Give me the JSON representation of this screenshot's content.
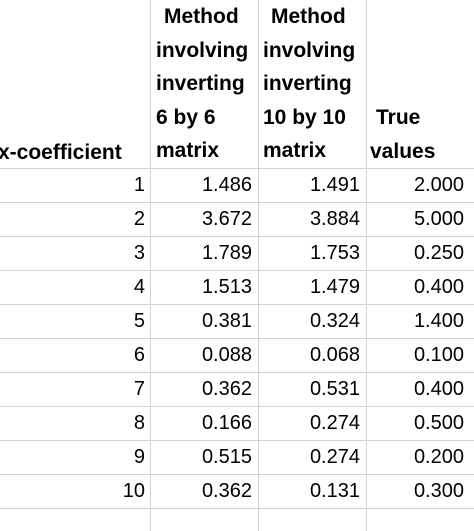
{
  "headers": {
    "x_coefficient": "x-coefficient",
    "method6": [
      "Method",
      "involving",
      "inverting",
      "6 by 6",
      "matrix"
    ],
    "method10": [
      "Method",
      "involving",
      "inverting",
      "10 by 10",
      "matrix"
    ],
    "true_values": [
      "True",
      "values"
    ]
  },
  "rows": [
    {
      "x": "1",
      "m6": "1.486",
      "m10": "1.491",
      "tv": "2.000"
    },
    {
      "x": "2",
      "m6": "3.672",
      "m10": "3.884",
      "tv": "5.000"
    },
    {
      "x": "3",
      "m6": "1.789",
      "m10": "1.753",
      "tv": "0.250"
    },
    {
      "x": "4",
      "m6": "1.513",
      "m10": "1.479",
      "tv": "0.400"
    },
    {
      "x": "5",
      "m6": "0.381",
      "m10": "0.324",
      "tv": "1.400"
    },
    {
      "x": "6",
      "m6": "0.088",
      "m10": "0.068",
      "tv": "0.100"
    },
    {
      "x": "7",
      "m6": "0.362",
      "m10": "0.531",
      "tv": "0.400"
    },
    {
      "x": "8",
      "m6": "0.166",
      "m10": "0.274",
      "tv": "0.500"
    },
    {
      "x": "9",
      "m6": "0.515",
      "m10": "0.274",
      "tv": "0.200"
    },
    {
      "x": "10",
      "m6": "0.362",
      "m10": "0.131",
      "tv": "0.300"
    }
  ]
}
